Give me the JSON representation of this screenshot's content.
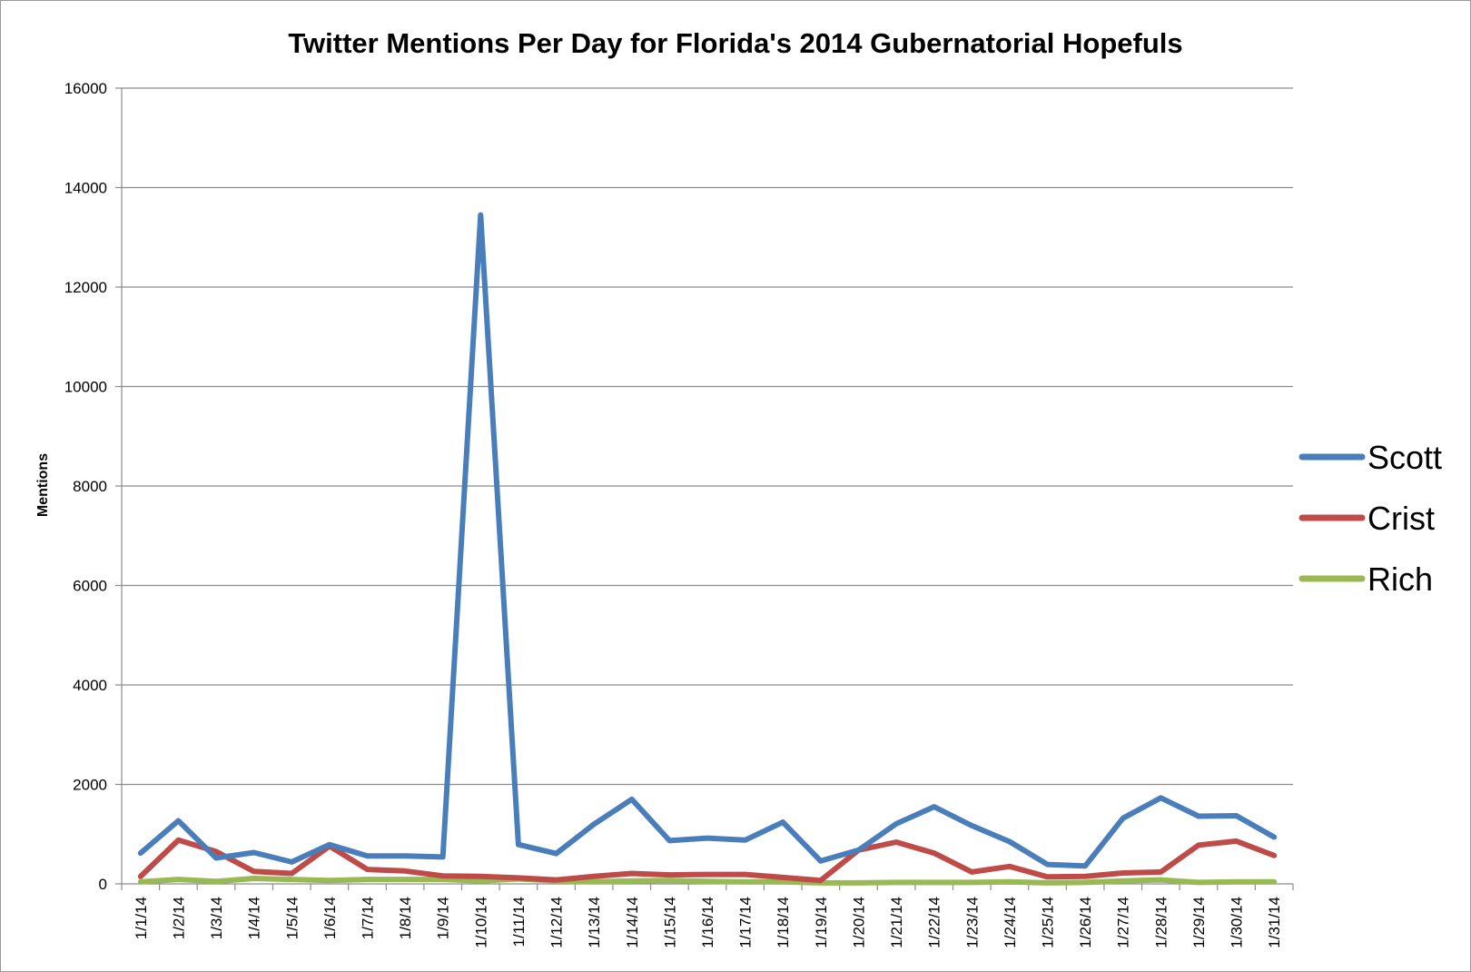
{
  "chart_data": {
    "type": "line",
    "title": "Twitter Mentions Per Day for Florida's 2014 Gubernatorial Hopefuls",
    "xlabel": "",
    "ylabel": "Mentions",
    "ylim": [
      0,
      16000
    ],
    "yticks": [
      0,
      2000,
      4000,
      6000,
      8000,
      10000,
      12000,
      14000,
      16000
    ],
    "grid": true,
    "legend_position": "right",
    "categories": [
      "1/1/14",
      "1/2/14",
      "1/3/14",
      "1/4/14",
      "1/5/14",
      "1/6/14",
      "1/7/14",
      "1/8/14",
      "1/9/14",
      "1/10/14",
      "1/11/14",
      "1/12/14",
      "1/13/14",
      "1/14/14",
      "1/15/14",
      "1/16/14",
      "1/17/14",
      "1/18/14",
      "1/19/14",
      "1/20/14",
      "1/21/14",
      "1/22/14",
      "1/23/14",
      "1/24/14",
      "1/25/14",
      "1/26/14",
      "1/27/14",
      "1/28/14",
      "1/29/14",
      "1/30/14",
      "1/31/14"
    ],
    "series": [
      {
        "name": "Scott",
        "color": "#4a7ebb",
        "values": [
          620,
          1270,
          520,
          630,
          440,
          790,
          560,
          560,
          540,
          13450,
          790,
          610,
          1200,
          1700,
          870,
          920,
          880,
          1240,
          460,
          680,
          1210,
          1550,
          1170,
          850,
          390,
          360,
          1320,
          1730,
          1360,
          1370,
          940
        ]
      },
      {
        "name": "Crist",
        "color": "#be4b48",
        "values": [
          150,
          880,
          650,
          250,
          210,
          760,
          290,
          260,
          160,
          150,
          120,
          80,
          150,
          210,
          180,
          190,
          190,
          130,
          70,
          680,
          840,
          620,
          240,
          350,
          140,
          150,
          220,
          240,
          780,
          860,
          570
        ]
      },
      {
        "name": "Rich",
        "color": "#98b954",
        "values": [
          40,
          90,
          50,
          110,
          90,
          70,
          90,
          90,
          90,
          60,
          100,
          60,
          40,
          60,
          70,
          50,
          40,
          40,
          20,
          20,
          30,
          30,
          30,
          40,
          20,
          30,
          60,
          80,
          30,
          40,
          40
        ]
      }
    ]
  }
}
